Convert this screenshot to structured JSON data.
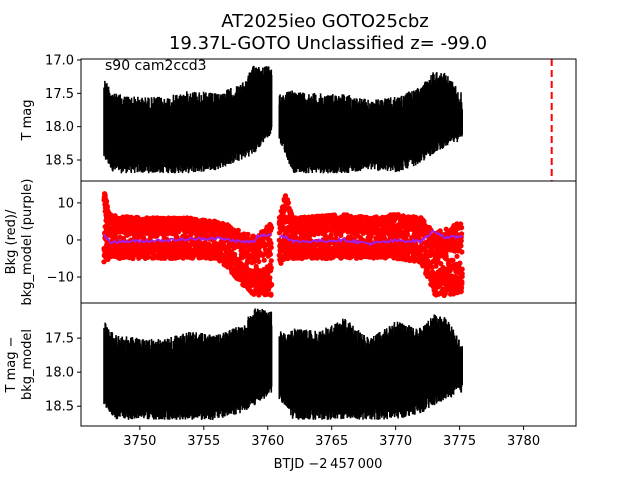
{
  "chart_data": {
    "type": "scatter",
    "title_line1": "AT2025ieo  GOTO25cbz",
    "title_line2": "19.37L-GOTO Unclassified z= -99.0",
    "xlabel": "BTJD −2 457 000",
    "xlim": [
      3745.4,
      3784.1
    ],
    "xticks": [
      "3750",
      "3755",
      "3760",
      "3765",
      "3770",
      "3775",
      "3780"
    ],
    "xtick_values": [
      3750,
      3755,
      3760,
      3765,
      3770,
      3775,
      3780
    ],
    "panels": [
      {
        "id": "tmag",
        "ylabel": [
          "T mag"
        ],
        "ylim": [
          18.815,
          16.985
        ],
        "yticks": [
          "17.0",
          "17.5",
          "18.0",
          "18.5"
        ],
        "ytick_values": [
          17.0,
          17.5,
          18.0,
          18.5
        ],
        "annotation": "s90 cam2ccd3",
        "vline": {
          "x": 3782.2,
          "color": "#ff0000",
          "style": "dashed"
        },
        "color": "#000000",
        "segments": [
          [
            3747.2,
            3760.3
          ],
          [
            3760.9,
            3775.2
          ]
        ],
        "envelope": [
          [
            3747.2,
            17.25,
            18.5
          ],
          [
            3748,
            17.5,
            18.7
          ],
          [
            3750,
            17.55,
            18.7
          ],
          [
            3752,
            17.55,
            18.7
          ],
          [
            3754,
            17.45,
            18.7
          ],
          [
            3756,
            17.5,
            18.65
          ],
          [
            3758,
            17.35,
            18.5
          ],
          [
            3759,
            17.05,
            18.4
          ],
          [
            3760.3,
            17.1,
            18.1
          ],
          [
            3760.9,
            17.5,
            18.2
          ],
          [
            3762,
            17.45,
            18.7
          ],
          [
            3764,
            17.5,
            18.7
          ],
          [
            3766,
            17.5,
            18.7
          ],
          [
            3768,
            17.6,
            18.65
          ],
          [
            3770,
            17.55,
            18.7
          ],
          [
            3772,
            17.4,
            18.55
          ],
          [
            3773,
            17.15,
            18.4
          ],
          [
            3774,
            17.2,
            18.3
          ],
          [
            3775.2,
            17.5,
            18.2
          ]
        ]
      },
      {
        "id": "bkg",
        "ylabel": [
          "Bkg (red)/",
          "bkg_model (purple)"
        ],
        "ylim": [
          -17,
          15.9
        ],
        "yticks": [
          "10",
          "0",
          "−10"
        ],
        "ytick_values": [
          10,
          0,
          -10
        ],
        "color": "#ff0000",
        "model_color": "#a020f0",
        "segments": [
          [
            3747.2,
            3760.3
          ],
          [
            3760.9,
            3775.2
          ]
        ],
        "envelope": [
          [
            3747.2,
            -7,
            14,
            1.5
          ],
          [
            3747.6,
            -5,
            7,
            -0.5
          ],
          [
            3750,
            -5,
            6,
            -0.3
          ],
          [
            3754,
            -5,
            6,
            0.2
          ],
          [
            3756,
            -5,
            5,
            0.5
          ],
          [
            3757,
            -8,
            4,
            0
          ],
          [
            3758,
            -12,
            2,
            -0.5
          ],
          [
            3759,
            -15,
            1,
            -0.5
          ],
          [
            3759.2,
            -15,
            1,
            1
          ],
          [
            3760.3,
            -15,
            5,
            1.5
          ],
          [
            3760.9,
            -7,
            6,
            1
          ],
          [
            3761.4,
            -5,
            13,
            1
          ],
          [
            3762,
            -5,
            6,
            -0.5
          ],
          [
            3766,
            -5,
            7,
            0
          ],
          [
            3768,
            -5,
            6,
            -1
          ],
          [
            3770,
            -5,
            7,
            -0.2
          ],
          [
            3772,
            -6,
            6,
            -0.3
          ],
          [
            3773,
            -15,
            2,
            2.5
          ],
          [
            3774,
            -15,
            3,
            0.5
          ],
          [
            3775.2,
            -14,
            5,
            1
          ]
        ]
      },
      {
        "id": "tmag-minus-bkg",
        "ylabel": [
          "T mag −",
          "bkg_model"
        ],
        "ylim": [
          18.79,
          16.985
        ],
        "yticks": [
          "17.5",
          "18.0",
          "18.5"
        ],
        "ytick_values": [
          17.5,
          18.0,
          18.5
        ],
        "color": "#000000",
        "segments": [
          [
            3747.2,
            3760.3
          ],
          [
            3760.9,
            3775.2
          ]
        ],
        "envelope": [
          [
            3747.2,
            17.25,
            18.5
          ],
          [
            3748,
            17.45,
            18.7
          ],
          [
            3750,
            17.5,
            18.7
          ],
          [
            3752,
            17.5,
            18.7
          ],
          [
            3754,
            17.4,
            18.7
          ],
          [
            3756,
            17.45,
            18.7
          ],
          [
            3758,
            17.3,
            18.6
          ],
          [
            3759,
            17.05,
            18.5
          ],
          [
            3760.3,
            17.1,
            18.3
          ],
          [
            3760.9,
            17.4,
            18.4
          ],
          [
            3762,
            17.35,
            18.7
          ],
          [
            3764,
            17.4,
            18.7
          ],
          [
            3766,
            17.2,
            18.7
          ],
          [
            3768,
            17.5,
            18.7
          ],
          [
            3770,
            17.25,
            18.7
          ],
          [
            3772,
            17.35,
            18.6
          ],
          [
            3773,
            17.15,
            18.5
          ],
          [
            3774,
            17.2,
            18.4
          ],
          [
            3775.2,
            17.6,
            18.3
          ]
        ]
      }
    ]
  }
}
